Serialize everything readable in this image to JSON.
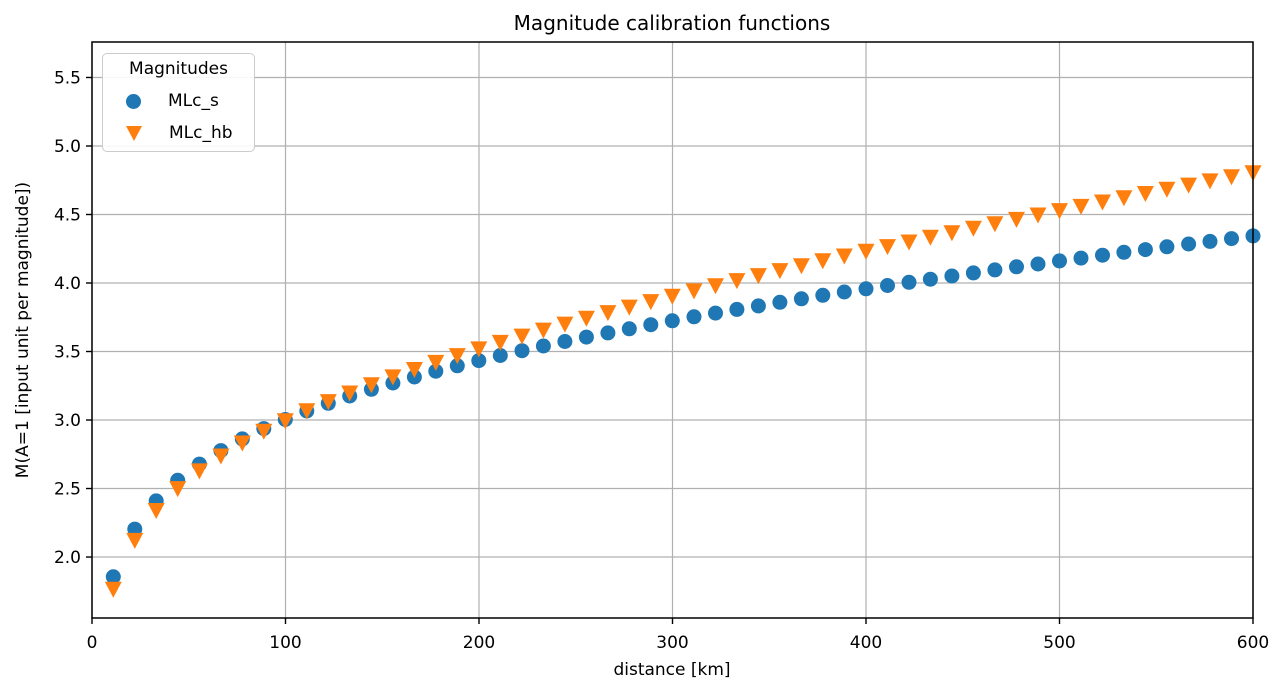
{
  "chart_data": {
    "type": "scatter",
    "title": "Magnitude calibration functions",
    "xlabel": "distance [km]",
    "ylabel": "M(A=1 [input unit per magnitude])",
    "xlim": [
      0,
      600
    ],
    "ylim": [
      1.555,
      5.759
    ],
    "grid": true,
    "grid_color": "#b0b0b0",
    "background_color": "#ffffff",
    "xticks": {
      "values": [
        0,
        100,
        200,
        300,
        400,
        500,
        600
      ],
      "labels": [
        "0",
        "100",
        "200",
        "300",
        "400",
        "500",
        "600"
      ]
    },
    "yticks": {
      "values": [
        2.0,
        2.5,
        3.0,
        3.5,
        4.0,
        4.5,
        5.0,
        5.5
      ],
      "labels": [
        "2.0",
        "2.5",
        "3.0",
        "3.5",
        "4.0",
        "4.5",
        "5.0",
        "5.5"
      ]
    },
    "legend": {
      "title": "Magnitudes",
      "position": "upper left"
    },
    "x": [
      11.0,
      22.1,
      33.2,
      44.3,
      55.5,
      66.6,
      77.7,
      88.8,
      99.9,
      111.0,
      122.1,
      133.2,
      144.4,
      155.5,
      166.6,
      177.7,
      188.8,
      199.9,
      211.0,
      222.2,
      233.3,
      244.4,
      255.5,
      266.6,
      277.7,
      288.8,
      299.9,
      311.1,
      322.2,
      333.3,
      344.4,
      355.5,
      366.6,
      377.7,
      388.8,
      400.0,
      411.1,
      422.2,
      433.3,
      444.4,
      455.5,
      466.6,
      477.8,
      488.9,
      500.0,
      511.1,
      522.2,
      533.3,
      544.4,
      555.5,
      566.7,
      577.8,
      588.9,
      600.0
    ],
    "series": [
      {
        "name": "MLc_s",
        "marker": "circle",
        "color": "#1f77b4",
        "values": [
          1.856,
          2.204,
          2.41,
          2.56,
          2.678,
          2.777,
          2.862,
          2.937,
          3.004,
          3.066,
          3.122,
          3.175,
          3.224,
          3.27,
          3.314,
          3.356,
          3.396,
          3.434,
          3.471,
          3.506,
          3.54,
          3.573,
          3.605,
          3.636,
          3.666,
          3.696,
          3.724,
          3.753,
          3.78,
          3.807,
          3.833,
          3.859,
          3.885,
          3.91,
          3.934,
          3.958,
          3.982,
          4.005,
          4.028,
          4.051,
          4.074,
          4.096,
          4.118,
          4.139,
          4.161,
          4.182,
          4.203,
          4.224,
          4.244,
          4.264,
          4.285,
          4.304,
          4.324,
          4.344
        ]
      },
      {
        "name": "MLc_hb",
        "marker": "triangle_down",
        "color": "#ff7f0e",
        "values": [
          1.768,
          2.125,
          2.343,
          2.503,
          2.632,
          2.741,
          2.836,
          2.922,
          2.999,
          3.071,
          3.138,
          3.201,
          3.261,
          3.318,
          3.372,
          3.424,
          3.474,
          3.523,
          3.57,
          3.616,
          3.66,
          3.704,
          3.746,
          3.788,
          3.828,
          3.868,
          3.907,
          3.946,
          3.984,
          4.021,
          4.058,
          4.094,
          4.13,
          4.166,
          4.201,
          4.235,
          4.269,
          4.303,
          4.337,
          4.37,
          4.403,
          4.436,
          4.468,
          4.5,
          4.532,
          4.563,
          4.595,
          4.626,
          4.657,
          4.688,
          4.718,
          4.749,
          4.779,
          4.809
        ]
      }
    ]
  }
}
